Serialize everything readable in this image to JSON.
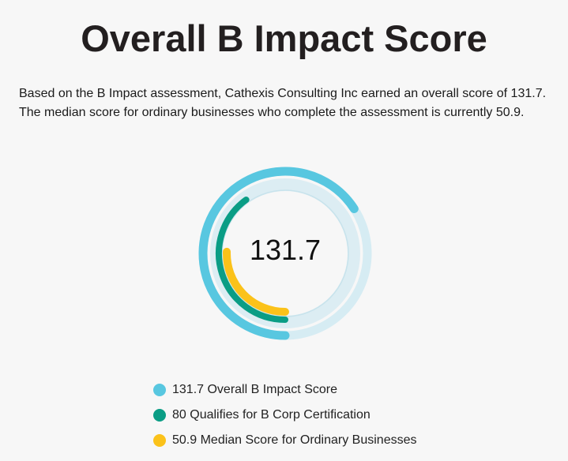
{
  "header": {
    "title": "Overall B Impact Score"
  },
  "description": {
    "line1": "Based on the B Impact assessment, Cathexis Consulting Inc earned an overall score of 131.7.",
    "line2": "The median score for ordinary businesses who complete the assessment is currently 50.9."
  },
  "chart_data": {
    "type": "radial-progress",
    "center_label": "131.7",
    "series": [
      {
        "name": "Overall B Impact Score",
        "value": 131.7,
        "color": "#58c7e0",
        "track_color": "#d6ecf3"
      },
      {
        "name": "Qualifies for B Corp Certification",
        "value": 80,
        "color": "#0a9d85",
        "track_color": "#d6ecf3"
      },
      {
        "name": "Median Score for Ordinary Businesses",
        "value": 50.9,
        "color": "#fbc21a",
        "track_color": "#d6ecf3"
      }
    ],
    "max": 200
  },
  "legend": {
    "items": [
      {
        "label": "131.7 Overall B Impact Score",
        "color": "#58c7e0"
      },
      {
        "label": "80 Qualifies for B Corp Certification",
        "color": "#0a9d85"
      },
      {
        "label": "50.9 Median Score for Ordinary Businesses",
        "color": "#fbc21a"
      }
    ]
  }
}
